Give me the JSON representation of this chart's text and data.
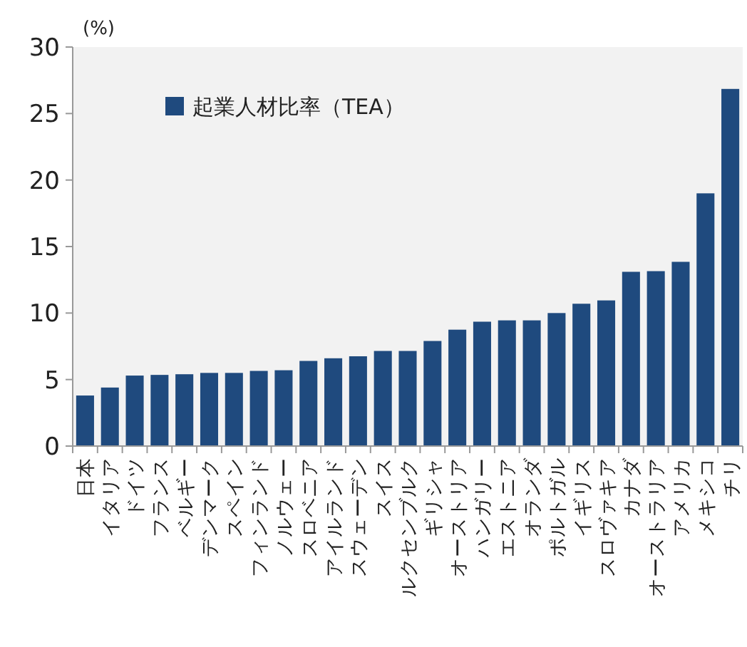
{
  "chart_data": {
    "type": "bar",
    "ylabel": "(%)",
    "categories": [
      "日本",
      "イタリア",
      "ドイツ",
      "フランス",
      "ベルギー",
      "デンマーク",
      "スペイン",
      "フィンランド",
      "ノルウェー",
      "スロベニア",
      "アイルランド",
      "スウェーデン",
      "スイス",
      "ルクセンブルク",
      "ギリシャ",
      "オーストリア",
      "ハンガリー",
      "エストニア",
      "オランダ",
      "ポルトガル",
      "イギリス",
      "スロヴァキア",
      "カナダ",
      "オーストラリア",
      "アメリカ",
      "メキシコ",
      "チリ"
    ],
    "series": [
      {
        "name": "起業人材比率（TEA）",
        "color": "#1f4a7e",
        "values": [
          3.8,
          4.4,
          5.3,
          5.35,
          5.4,
          5.5,
          5.5,
          5.65,
          5.7,
          6.4,
          6.6,
          6.75,
          7.15,
          7.15,
          7.9,
          8.75,
          9.35,
          9.45,
          9.45,
          10.0,
          10.7,
          10.95,
          13.1,
          13.15,
          13.85,
          19.0,
          26.85
        ]
      }
    ],
    "ylim": [
      0,
      30
    ],
    "yticks": [
      0,
      5,
      10,
      15,
      20,
      25,
      30
    ],
    "legend": "top left",
    "grid": false
  }
}
